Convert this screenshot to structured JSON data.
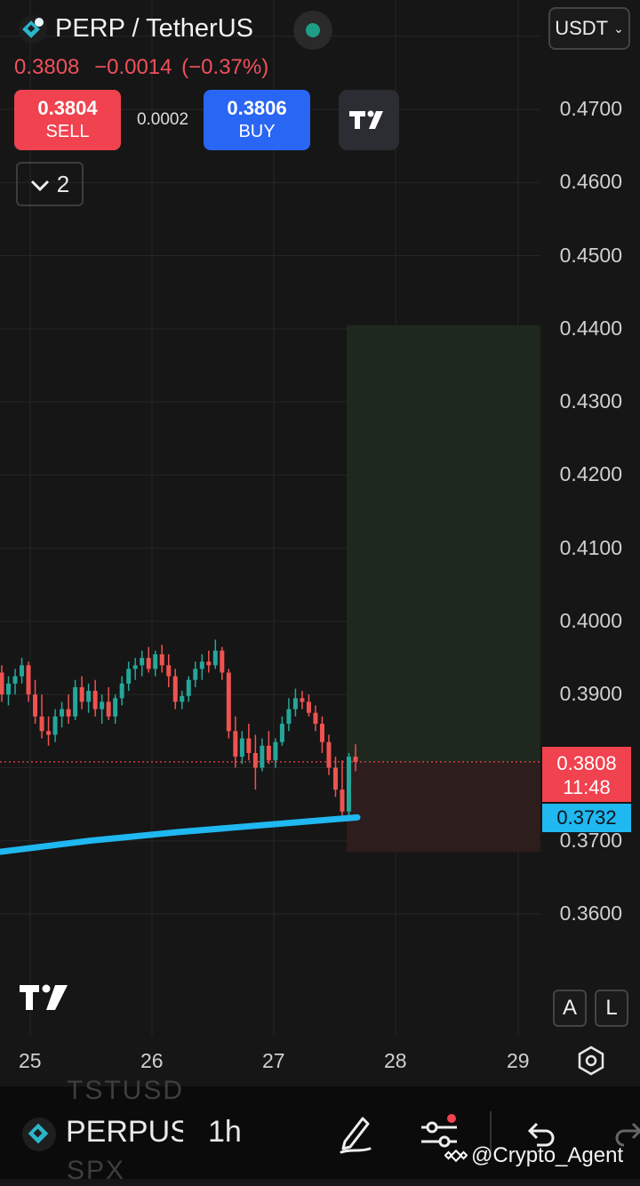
{
  "header": {
    "symbol_title": "PERP / TetherUS",
    "currency": "USDT",
    "last_price": "0.3808",
    "change_abs": "−0.0014",
    "change_pct": "(−0.37%)"
  },
  "trade": {
    "sell_price": "0.3804",
    "sell_label": "SELL",
    "spread": "0.0002",
    "buy_price": "0.3806",
    "buy_label": "BUY"
  },
  "indicators_toggle": {
    "count": "2"
  },
  "price_axis": {
    "ticks": [
      "0.4700",
      "0.4600",
      "0.4500",
      "0.4400",
      "0.4300",
      "0.4200",
      "0.4100",
      "0.4000",
      "0.3900",
      "0.3700",
      "0.3600"
    ],
    "last_price": "0.3808",
    "countdown": "11:48",
    "ma_value": "0.3732",
    "auto_label": "A",
    "log_label": "L"
  },
  "time_axis": {
    "ticks": [
      "25",
      "26",
      "27",
      "28",
      "29"
    ]
  },
  "bottom_bar": {
    "symbol": "PERPUS",
    "interval": "1h",
    "ghost_top": "TSTUSD",
    "ghost_bottom": "SPX"
  },
  "watermark": "@Crypto_Agent",
  "colors": {
    "up": "#26a69a",
    "down": "#ef5350",
    "ma": "#1fb8f0",
    "sell": "#f0424f",
    "buy": "#2a66f4"
  },
  "chart_data": {
    "type": "candlestick",
    "ylim": [
      0.355,
      0.478
    ],
    "x_ticks": [
      "25",
      "26",
      "27",
      "28",
      "29"
    ],
    "ma_series": [
      0.3685,
      0.37,
      0.3712,
      0.3722,
      0.3732
    ],
    "candles": [
      [
        0.393,
        0.394,
        0.389,
        0.39
      ],
      [
        0.39,
        0.3925,
        0.3885,
        0.3915
      ],
      [
        0.3915,
        0.3935,
        0.39,
        0.3925
      ],
      [
        0.3925,
        0.395,
        0.3915,
        0.394
      ],
      [
        0.394,
        0.3945,
        0.389,
        0.39
      ],
      [
        0.39,
        0.392,
        0.386,
        0.387
      ],
      [
        0.387,
        0.39,
        0.384,
        0.385
      ],
      [
        0.385,
        0.387,
        0.383,
        0.3845
      ],
      [
        0.3845,
        0.388,
        0.3835,
        0.387
      ],
      [
        0.387,
        0.389,
        0.3855,
        0.388
      ],
      [
        0.388,
        0.39,
        0.386,
        0.387
      ],
      [
        0.387,
        0.392,
        0.3865,
        0.391
      ],
      [
        0.391,
        0.3925,
        0.388,
        0.389
      ],
      [
        0.389,
        0.3915,
        0.3875,
        0.3905
      ],
      [
        0.3905,
        0.392,
        0.387,
        0.388
      ],
      [
        0.388,
        0.39,
        0.386,
        0.389
      ],
      [
        0.389,
        0.391,
        0.3865,
        0.387
      ],
      [
        0.387,
        0.39,
        0.386,
        0.3895
      ],
      [
        0.3895,
        0.3925,
        0.3885,
        0.3915
      ],
      [
        0.3915,
        0.3945,
        0.3905,
        0.3935
      ],
      [
        0.3935,
        0.395,
        0.392,
        0.394
      ],
      [
        0.394,
        0.396,
        0.3925,
        0.395
      ],
      [
        0.395,
        0.3965,
        0.393,
        0.3935
      ],
      [
        0.3935,
        0.396,
        0.3925,
        0.3955
      ],
      [
        0.3955,
        0.3968,
        0.393,
        0.394
      ],
      [
        0.394,
        0.3955,
        0.391,
        0.3925
      ],
      [
        0.3925,
        0.3935,
        0.388,
        0.389
      ],
      [
        0.389,
        0.3905,
        0.388,
        0.3898
      ],
      [
        0.3898,
        0.3925,
        0.389,
        0.392
      ],
      [
        0.392,
        0.3945,
        0.391,
        0.3935
      ],
      [
        0.3935,
        0.3955,
        0.392,
        0.3945
      ],
      [
        0.3945,
        0.396,
        0.393,
        0.394
      ],
      [
        0.394,
        0.3975,
        0.3935,
        0.396
      ],
      [
        0.396,
        0.3965,
        0.392,
        0.393
      ],
      [
        0.393,
        0.3935,
        0.384,
        0.385
      ],
      [
        0.385,
        0.387,
        0.38,
        0.3815
      ],
      [
        0.3815,
        0.385,
        0.3805,
        0.384
      ],
      [
        0.384,
        0.386,
        0.381,
        0.382
      ],
      [
        0.382,
        0.3845,
        0.377,
        0.38
      ],
      [
        0.38,
        0.384,
        0.3795,
        0.383
      ],
      [
        0.383,
        0.385,
        0.3805,
        0.381
      ],
      [
        0.381,
        0.384,
        0.38,
        0.3835
      ],
      [
        0.3835,
        0.387,
        0.383,
        0.386
      ],
      [
        0.386,
        0.3895,
        0.385,
        0.388
      ],
      [
        0.388,
        0.3908,
        0.387,
        0.3895
      ],
      [
        0.3895,
        0.3905,
        0.388,
        0.389
      ],
      [
        0.389,
        0.39,
        0.387,
        0.3875
      ],
      [
        0.3875,
        0.3885,
        0.385,
        0.386
      ],
      [
        0.386,
        0.387,
        0.382,
        0.3835
      ],
      [
        0.3835,
        0.3845,
        0.379,
        0.38
      ],
      [
        0.38,
        0.3815,
        0.376,
        0.377
      ],
      [
        0.377,
        0.381,
        0.3728,
        0.374
      ],
      [
        0.374,
        0.382,
        0.373,
        0.3815
      ],
      [
        0.3815,
        0.3832,
        0.3795,
        0.3808
      ]
    ],
    "position": {
      "entry": 0.3808,
      "target": 0.4405,
      "stop": 0.3685
    }
  }
}
